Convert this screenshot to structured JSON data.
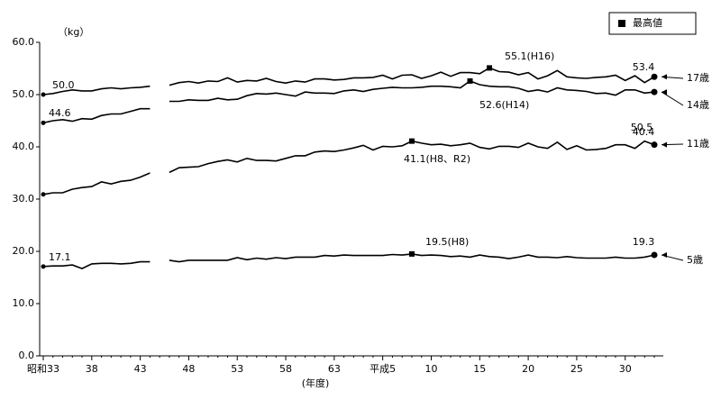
{
  "chart_data": {
    "type": "line",
    "y_label": "（kg）",
    "x_label": "(年度)",
    "legend_label": "最高値",
    "categories": [
      "昭和33",
      null,
      null,
      null,
      null,
      "38",
      null,
      null,
      null,
      null,
      "43",
      null,
      null,
      null,
      null,
      "48",
      null,
      null,
      null,
      null,
      "53",
      null,
      null,
      null,
      null,
      "58",
      null,
      null,
      null,
      null,
      "63",
      null,
      null,
      null,
      null,
      "平成5",
      null,
      null,
      null,
      null,
      "10",
      null,
      null,
      null,
      null,
      "15",
      null,
      null,
      null,
      null,
      "20",
      null,
      null,
      null,
      null,
      "25",
      null,
      null,
      null,
      null,
      "30",
      null,
      null,
      null
    ],
    "ylim": [
      0,
      60
    ],
    "yticks": [
      {
        "value": 0,
        "label": "0.0"
      },
      {
        "value": 10,
        "label": "10.0"
      },
      {
        "value": 20,
        "label": "20.0"
      },
      {
        "value": 30,
        "label": "30.0"
      },
      {
        "value": 40,
        "label": "40.0"
      },
      {
        "value": 50,
        "label": "50.0"
      },
      {
        "value": 60,
        "label": "60.0"
      }
    ],
    "series": [
      {
        "name": "17歳",
        "color": "#000000",
        "values": [
          50.0,
          50.2,
          50.6,
          50.9,
          50.7,
          50.7,
          51.1,
          51.3,
          51.1,
          51.3,
          51.4,
          51.6,
          null,
          51.8,
          52.3,
          52.5,
          52.2,
          52.6,
          52.5,
          53.2,
          52.4,
          52.7,
          52.6,
          53.1,
          52.5,
          52.2,
          52.6,
          52.4,
          53.0,
          53.0,
          52.8,
          52.9,
          53.2,
          53.2,
          53.3,
          53.7,
          53.0,
          53.7,
          53.8,
          53.1,
          53.6,
          54.3,
          53.5,
          54.2,
          54.2,
          54.0,
          55.1,
          54.4,
          54.3,
          53.8,
          54.2,
          53.0,
          53.6,
          54.6,
          53.4,
          53.2,
          53.1,
          53.3,
          53.4,
          53.7,
          52.7,
          53.6,
          52.3,
          53.4
        ]
      },
      {
        "name": "14歳",
        "color": "#000000",
        "values": [
          44.6,
          45.0,
          45.2,
          44.9,
          45.4,
          45.3,
          46.0,
          46.3,
          46.3,
          46.8,
          47.3,
          47.3,
          null,
          48.7,
          48.7,
          49.0,
          48.9,
          48.9,
          49.3,
          49.0,
          49.1,
          49.8,
          50.2,
          50.1,
          50.3,
          50.0,
          49.7,
          50.5,
          50.3,
          50.3,
          50.2,
          50.7,
          50.9,
          50.6,
          51.0,
          51.2,
          51.4,
          51.3,
          51.3,
          51.4,
          51.6,
          51.6,
          51.5,
          51.3,
          52.6,
          51.9,
          51.6,
          51.5,
          51.5,
          51.2,
          50.6,
          50.9,
          50.5,
          51.3,
          50.9,
          50.8,
          50.6,
          50.2,
          50.3,
          49.9,
          50.9,
          50.9,
          50.3,
          50.5
        ]
      },
      {
        "name": "11歳",
        "color": "#000000",
        "values": [
          30.9,
          31.2,
          31.2,
          31.9,
          32.2,
          32.4,
          33.3,
          32.9,
          33.4,
          33.6,
          34.2,
          35.0,
          null,
          35.1,
          36.0,
          36.1,
          36.2,
          36.8,
          37.2,
          37.5,
          37.1,
          37.8,
          37.4,
          37.4,
          37.3,
          37.8,
          38.3,
          38.3,
          39.0,
          39.2,
          39.1,
          39.4,
          39.8,
          40.3,
          39.4,
          40.1,
          40.0,
          40.2,
          41.1,
          40.7,
          40.4,
          40.5,
          40.2,
          40.4,
          40.7,
          39.9,
          39.6,
          40.1,
          40.1,
          39.9,
          40.7,
          40.0,
          39.7,
          40.9,
          39.5,
          40.2,
          39.4,
          39.5,
          39.7,
          40.4,
          40.4,
          39.7,
          41.1,
          40.4
        ]
      },
      {
        "name": "5歳",
        "color": "#000000",
        "values": [
          17.1,
          17.2,
          17.2,
          17.4,
          16.7,
          17.6,
          17.7,
          17.7,
          17.6,
          17.7,
          18.0,
          18.0,
          null,
          18.3,
          18.0,
          18.3,
          18.3,
          18.3,
          18.3,
          18.3,
          18.8,
          18.4,
          18.7,
          18.5,
          18.8,
          18.6,
          18.9,
          18.9,
          18.9,
          19.2,
          19.1,
          19.3,
          19.2,
          19.2,
          19.2,
          19.2,
          19.4,
          19.3,
          19.5,
          19.2,
          19.3,
          19.2,
          19.0,
          19.1,
          18.9,
          19.3,
          19.0,
          18.9,
          18.6,
          18.9,
          19.3,
          18.9,
          18.9,
          18.8,
          19.0,
          18.8,
          18.7,
          18.7,
          18.7,
          18.9,
          18.7,
          18.7,
          18.9,
          19.3
        ]
      }
    ],
    "annotations": [
      "50.0",
      "44.6",
      "17.1",
      "53.4",
      "50.5",
      "40.4",
      "19.3",
      "55.1(H16)",
      "52.6(H14)",
      "41.1(H8、R2)",
      "19.5(H8)"
    ]
  }
}
